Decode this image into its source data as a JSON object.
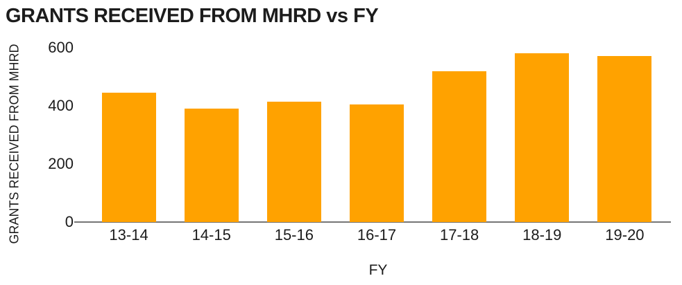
{
  "chart_data": {
    "type": "bar",
    "title": "GRANTS RECEIVED FROM MHRD vs FY",
    "xlabel": "FY",
    "ylabel": "GRANTS RECEIVED FROM MHRD",
    "categories": [
      "13-14",
      "14-15",
      "15-16",
      "16-17",
      "17-18",
      "18-19",
      "19-20"
    ],
    "values": [
      445,
      390,
      415,
      405,
      520,
      580,
      572
    ],
    "ylim": [
      0,
      600
    ],
    "yticks": [
      0,
      200,
      400,
      600
    ],
    "bar_color": "#FFA200",
    "axis_color": "#757575",
    "text_color": "#1b1b1b",
    "grid": false,
    "legend": "none"
  }
}
